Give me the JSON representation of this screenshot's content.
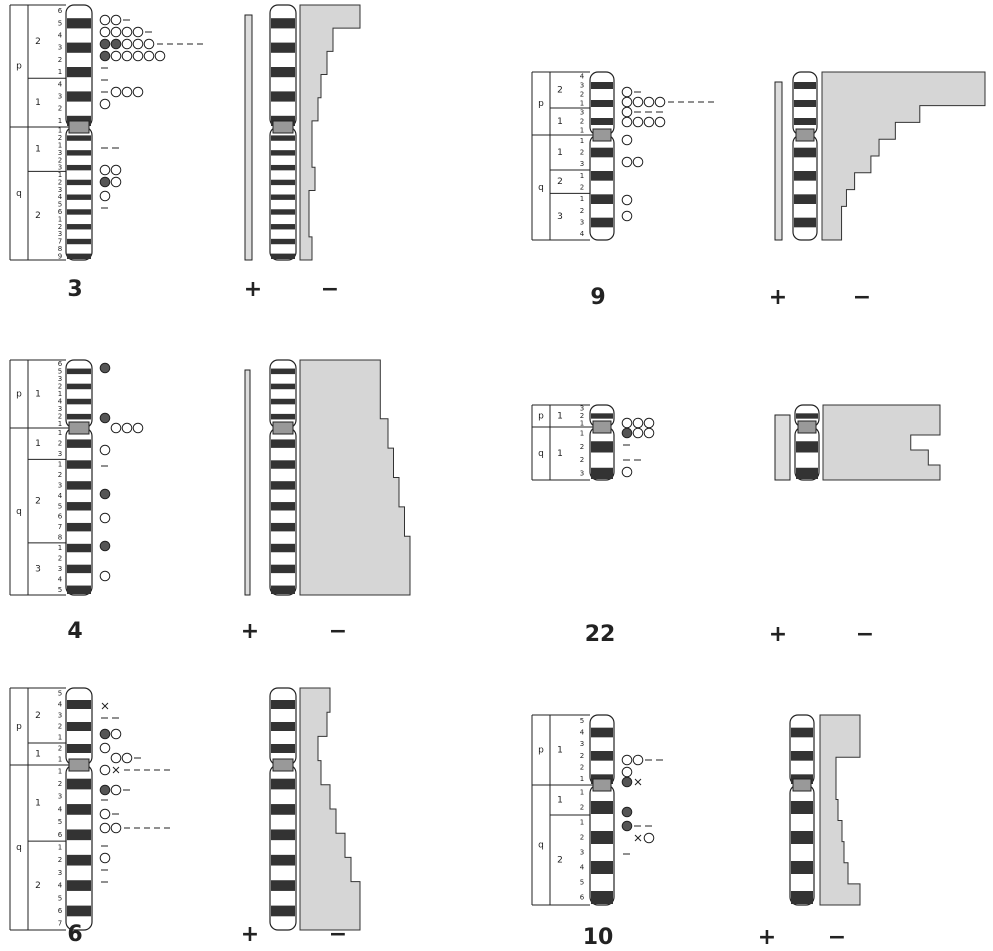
{
  "panels": [
    {
      "label": "3",
      "plus": "+",
      "minus": "−",
      "arms": [
        {
          "name": "p",
          "regions": [
            {
              "num": "2",
              "bands": [
                "6",
                "5",
                "4",
                "3",
                "2",
                "1"
              ]
            },
            {
              "num": "1",
              "bands": [
                "4",
                "3",
                "2",
                "1"
              ]
            }
          ]
        },
        {
          "name": "q",
          "regions": [
            {
              "num": "1",
              "bands": [
                "1",
                "2",
                "1",
                "3",
                "2",
                "3"
              ]
            },
            {
              "num": "2",
              "bands": [
                "1",
                "2",
                "3",
                "4",
                "5",
                "6",
                "1",
                "2",
                "3",
                "7",
                "8",
                "9"
              ]
            }
          ]
        }
      ]
    },
    {
      "label": "9",
      "plus": "+",
      "minus": "−",
      "arms": [
        {
          "name": "p",
          "regions": [
            {
              "num": "2",
              "bands": [
                "4",
                "3",
                "2",
                "1"
              ]
            },
            {
              "num": "1",
              "bands": [
                "3",
                "2",
                "1"
              ]
            }
          ]
        },
        {
          "name": "q",
          "regions": [
            {
              "num": "1",
              "bands": [
                "1",
                "2",
                "3"
              ]
            },
            {
              "num": "2",
              "bands": [
                "1",
                "2"
              ]
            },
            {
              "num": "3",
              "bands": [
                "1",
                "2",
                "3",
                "4"
              ]
            }
          ]
        }
      ]
    },
    {
      "label": "4",
      "plus": "+",
      "minus": "−",
      "arms": [
        {
          "name": "p",
          "regions": [
            {
              "num": "1",
              "bands": [
                "6",
                "5",
                "3",
                "2",
                "1",
                "4",
                "3",
                "2",
                "1"
              ]
            }
          ]
        },
        {
          "name": "q",
          "regions": [
            {
              "num": "1",
              "bands": [
                "1",
                "2",
                "3"
              ]
            },
            {
              "num": "2",
              "bands": [
                "1",
                "2",
                "3",
                "4",
                "5",
                "6",
                "7",
                "8"
              ]
            },
            {
              "num": "3",
              "bands": [
                "1",
                "2",
                "3",
                "4",
                "5"
              ]
            }
          ]
        }
      ]
    },
    {
      "label": "22",
      "plus": "+",
      "minus": "−",
      "arms": [
        {
          "name": "p",
          "regions": [
            {
              "num": "1",
              "bands": [
                "3",
                "2",
                "1"
              ]
            }
          ]
        },
        {
          "name": "q",
          "regions": [
            {
              "num": "1",
              "bands": [
                "1",
                "2",
                "2",
                "3"
              ]
            }
          ]
        }
      ]
    },
    {
      "label": "6",
      "plus": "+",
      "minus": "−",
      "arms": [
        {
          "name": "p",
          "regions": [
            {
              "num": "2",
              "bands": [
                "5",
                "4",
                "3",
                "2",
                "1"
              ]
            },
            {
              "num": "1",
              "bands": [
                "2",
                "1"
              ]
            }
          ]
        },
        {
          "name": "q",
          "regions": [
            {
              "num": "1",
              "bands": [
                "1",
                "2",
                "3",
                "4",
                "5",
                "6"
              ]
            },
            {
              "num": "2",
              "bands": [
                "1",
                "2",
                "3",
                "4",
                "5",
                "6",
                "7"
              ]
            }
          ]
        }
      ]
    },
    {
      "label": "10",
      "plus": "+",
      "minus": "−",
      "arms": [
        {
          "name": "p",
          "regions": [
            {
              "num": "1",
              "bands": [
                "5",
                "4",
                "3",
                "2",
                "2",
                "1"
              ]
            }
          ]
        },
        {
          "name": "q",
          "regions": [
            {
              "num": "1",
              "bands": [
                "1",
                "2"
              ]
            },
            {
              "num": "2",
              "bands": [
                "1",
                "2",
                "3",
                "4",
                "5",
                "6"
              ]
            }
          ]
        }
      ]
    }
  ]
}
